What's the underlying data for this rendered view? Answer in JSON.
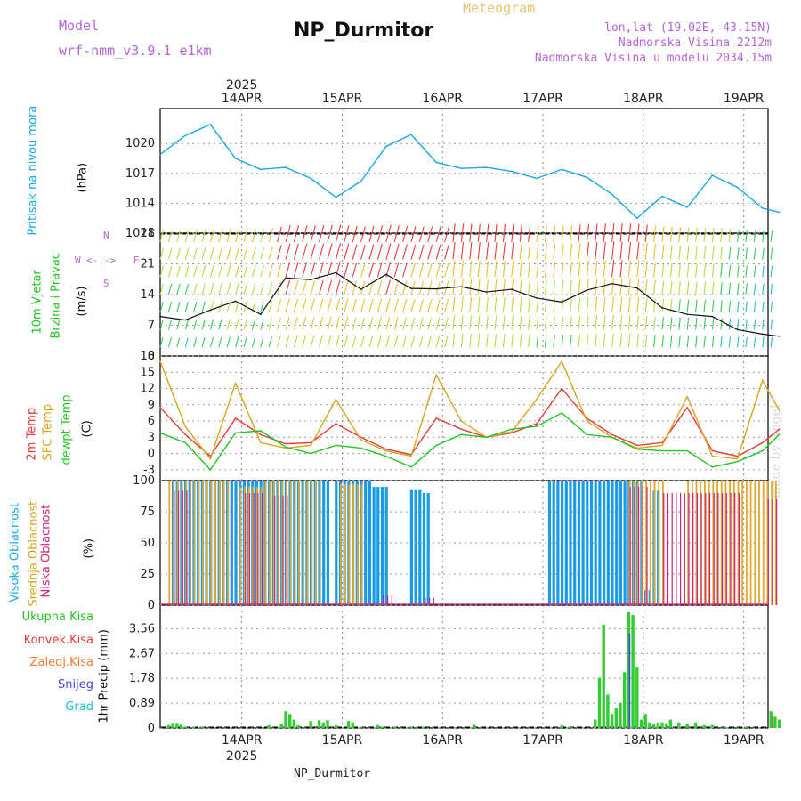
{
  "header": {
    "model_label": "Model",
    "model_name": "wrf-nmm_v3.9.1 e1km",
    "title": "NP_Durmitor",
    "subtitle": "Meteogram",
    "coords": "lon,lat (19.02E, 43.15N)",
    "elevation": "Nadmorska Visina 2212m",
    "model_elevation": "Nadmorska Visina u modelu 2034.15m"
  },
  "footer": "NP_Durmitor",
  "watermark": "made by Angel",
  "colors": {
    "pressure": "#1aa6e8",
    "temp2m": "#e83a3a",
    "sfc": "#d9a520",
    "dew": "#22c422",
    "high_cloud": "#1a9be8",
    "mid_cloud": "#e0a830",
    "low_cloud": "#d0207a",
    "precip": "#33cc33",
    "snow": "#4444ee"
  },
  "chart_data": [
    {
      "type": "line",
      "panel": "pressure",
      "ylabel_main": "Pritisak na nivou mora",
      "ylabel_unit": "(hPa)",
      "top_year": "2025",
      "x_ticks": [
        "14APR",
        "15APR",
        "16APR",
        "17APR",
        "18APR",
        "19APR"
      ],
      "y_ticks": [
        "1020",
        "1017",
        "1014",
        "1011"
      ],
      "ylim": [
        1011,
        1023.5
      ],
      "x_hours": [
        0,
        6,
        12,
        18,
        24,
        30,
        36,
        42,
        48,
        54,
        60,
        66,
        72,
        78,
        84,
        90,
        96,
        102,
        108,
        114,
        120,
        126,
        132,
        138,
        144,
        148
      ],
      "values": [
        1018.9,
        1020.8,
        1021.9,
        1018.5,
        1017.4,
        1017.6,
        1016.5,
        1014.6,
        1016.2,
        1019.7,
        1020.9,
        1018.1,
        1017.5,
        1017.6,
        1017.2,
        1016.5,
        1017.4,
        1016.6,
        1014.9,
        1012.5,
        1014.7,
        1013.6,
        1016.8,
        1015.6,
        1013.5,
        1013.1
      ]
    },
    {
      "type": "line",
      "panel": "wind",
      "ylabel_main": "10m Vjetar",
      "ylabel_sub": "Brzina i Pravac",
      "ylabel_unit": "(m/s)",
      "compass_n": "N",
      "compass_s": "S",
      "compass_w": "W",
      "compass_e": "E",
      "y_ticks": [
        "28",
        "21",
        "14",
        "7",
        "0"
      ],
      "ylim": [
        0,
        28
      ],
      "x_hours": [
        0,
        6,
        12,
        18,
        24,
        30,
        36,
        42,
        48,
        54,
        60,
        66,
        72,
        78,
        84,
        90,
        96,
        102,
        108,
        114,
        120,
        126,
        132,
        138,
        144,
        148
      ],
      "values": [
        9.0,
        8.2,
        10.5,
        12.5,
        9.5,
        17.8,
        17.4,
        19.0,
        15.2,
        18.6,
        15.4,
        15.3,
        15.8,
        14.6,
        15.2,
        13.2,
        12.3,
        15.0,
        16.5,
        15.5,
        11.0,
        9.5,
        9.0,
        6.0,
        5.0,
        4.5
      ]
    },
    {
      "type": "line",
      "panel": "temperature",
      "ylabel_a": "2m Temp",
      "ylabel_b": "SFC Temp",
      "ylabel_c": "dewpt Temp",
      "ylabel_unit": "(C)",
      "y_ticks": [
        "18",
        "15",
        "12",
        "9",
        "6",
        "3",
        "0",
        "-3"
      ],
      "ylim": [
        -5,
        18
      ],
      "x_hours": [
        0,
        6,
        12,
        18,
        24,
        30,
        36,
        42,
        48,
        54,
        60,
        66,
        72,
        78,
        84,
        90,
        96,
        102,
        108,
        114,
        120,
        126,
        132,
        138,
        144,
        148
      ],
      "series": [
        {
          "name": "2m Temp",
          "values": [
            8.5,
            3.5,
            -0.5,
            6.5,
            3.5,
            1.8,
            2.0,
            5.5,
            3.0,
            0.8,
            -0.2,
            6.5,
            4.5,
            3.0,
            3.8,
            5.5,
            12.0,
            6.5,
            3.5,
            1.5,
            2.0,
            8.5,
            0.5,
            -0.5,
            2.0,
            4.5
          ]
        },
        {
          "name": "SFC Temp",
          "values": [
            17.0,
            5.0,
            -1.0,
            13.0,
            2.0,
            1.0,
            1.5,
            10.0,
            2.5,
            0.5,
            -0.5,
            14.5,
            6.0,
            3.0,
            4.0,
            10.0,
            17.0,
            6.0,
            3.0,
            1.0,
            1.5,
            10.5,
            -0.5,
            -1.0,
            13.5,
            8.0
          ]
        },
        {
          "name": "dewpt Temp",
          "values": [
            3.8,
            2.0,
            -3.0,
            3.8,
            4.2,
            1.2,
            0.0,
            1.5,
            1.0,
            -0.5,
            -2.5,
            1.5,
            3.5,
            3.0,
            4.5,
            5.0,
            7.5,
            3.5,
            3.0,
            0.8,
            0.5,
            0.5,
            -2.5,
            -1.5,
            0.5,
            3.5
          ]
        }
      ]
    },
    {
      "type": "bar",
      "panel": "cloud",
      "ylabel_a": "Visoka Oblacnost",
      "ylabel_b": "Srednja Oblacnost",
      "ylabel_c": "Niska Oblacnost",
      "ylabel_unit": "(%)",
      "y_ticks": [
        "100",
        "75",
        "50",
        "25",
        "0"
      ],
      "ylim": [
        0,
        100
      ],
      "series": [
        {
          "name": "Visoka Oblacnost",
          "ranges": [
            [
              3,
              40,
              100
            ],
            [
              42,
              50,
              100
            ],
            [
              51,
              54,
              95
            ],
            [
              60,
              62,
              93
            ],
            [
              63,
              64,
              90
            ],
            [
              93,
              115,
              100
            ],
            [
              116,
              117,
              12
            ],
            [
              118,
              119,
              92
            ]
          ]
        },
        {
          "name": "Srednja Oblacnost",
          "ranges": [
            [
              2,
              8,
              100
            ],
            [
              9,
              16,
              100
            ],
            [
              19,
              24,
              95
            ],
            [
              25,
              38,
              100
            ],
            [
              43,
              48,
              97
            ],
            [
              112,
              118,
              100
            ],
            [
              118,
              120,
              100
            ],
            [
              126,
              147,
              100
            ]
          ]
        },
        {
          "name": "Niska Oblacnost",
          "ranges": [
            [
              3,
              6,
              92
            ],
            [
              20,
              24,
              90
            ],
            [
              27,
              30,
              88
            ],
            [
              53,
              55,
              8
            ],
            [
              63,
              65,
              6
            ],
            [
              112,
              116,
              95
            ],
            [
              120,
              138,
              90
            ],
            [
              145,
              147,
              85
            ]
          ]
        }
      ]
    },
    {
      "type": "bar",
      "panel": "precip",
      "legend": [
        "Ukupna Kisa",
        "Konvek.Kisa",
        "Zaledj.Kisa",
        "Snijeg",
        "Grad"
      ],
      "legend_colors": [
        "#22c422",
        "#e83a3a",
        "#f07a30",
        "#4444ee",
        "#22bcd4"
      ],
      "ylabel_unit": "1hr Precip (mm)",
      "y_ticks": [
        "3.56",
        "2.67",
        "1.78",
        "0.89",
        "0"
      ],
      "ylim": [
        0,
        4.4
      ],
      "bottom_ticks": [
        "14APR",
        "15APR",
        "16APR",
        "17APR",
        "18APR",
        "19APR"
      ],
      "bottom_year": "2025",
      "hours": [
        2,
        3,
        4,
        5,
        6,
        8,
        10,
        26,
        29,
        30,
        31,
        32,
        33,
        36,
        38,
        39,
        40,
        42,
        45,
        46,
        48,
        52,
        53,
        56,
        60,
        63,
        75,
        96,
        98,
        104,
        105,
        106,
        107,
        108,
        109,
        110,
        111,
        112,
        113,
        114,
        115,
        116,
        117,
        118,
        119,
        120,
        121,
        122,
        124,
        126,
        128,
        130,
        132,
        135,
        140,
        146,
        147,
        148
      ],
      "values": [
        0.1,
        0.18,
        0.18,
        0.12,
        0.05,
        0.05,
        0.05,
        0.1,
        0.15,
        0.6,
        0.5,
        0.3,
        0.1,
        0.25,
        0.28,
        0.2,
        0.28,
        0.1,
        0.25,
        0.2,
        0.05,
        0.1,
        0.05,
        0.05,
        0.05,
        0.05,
        0.12,
        0.1,
        0.06,
        0.3,
        1.8,
        3.7,
        1.2,
        0.5,
        0.7,
        0.9,
        2.0,
        4.15,
        4.05,
        2.2,
        0.3,
        0.5,
        0.2,
        0.15,
        0.2,
        0.2,
        0.15,
        0.3,
        0.2,
        0.15,
        0.2,
        0.1,
        0.1,
        0.05,
        0.05,
        0.6,
        0.4,
        0.3
      ]
    }
  ]
}
